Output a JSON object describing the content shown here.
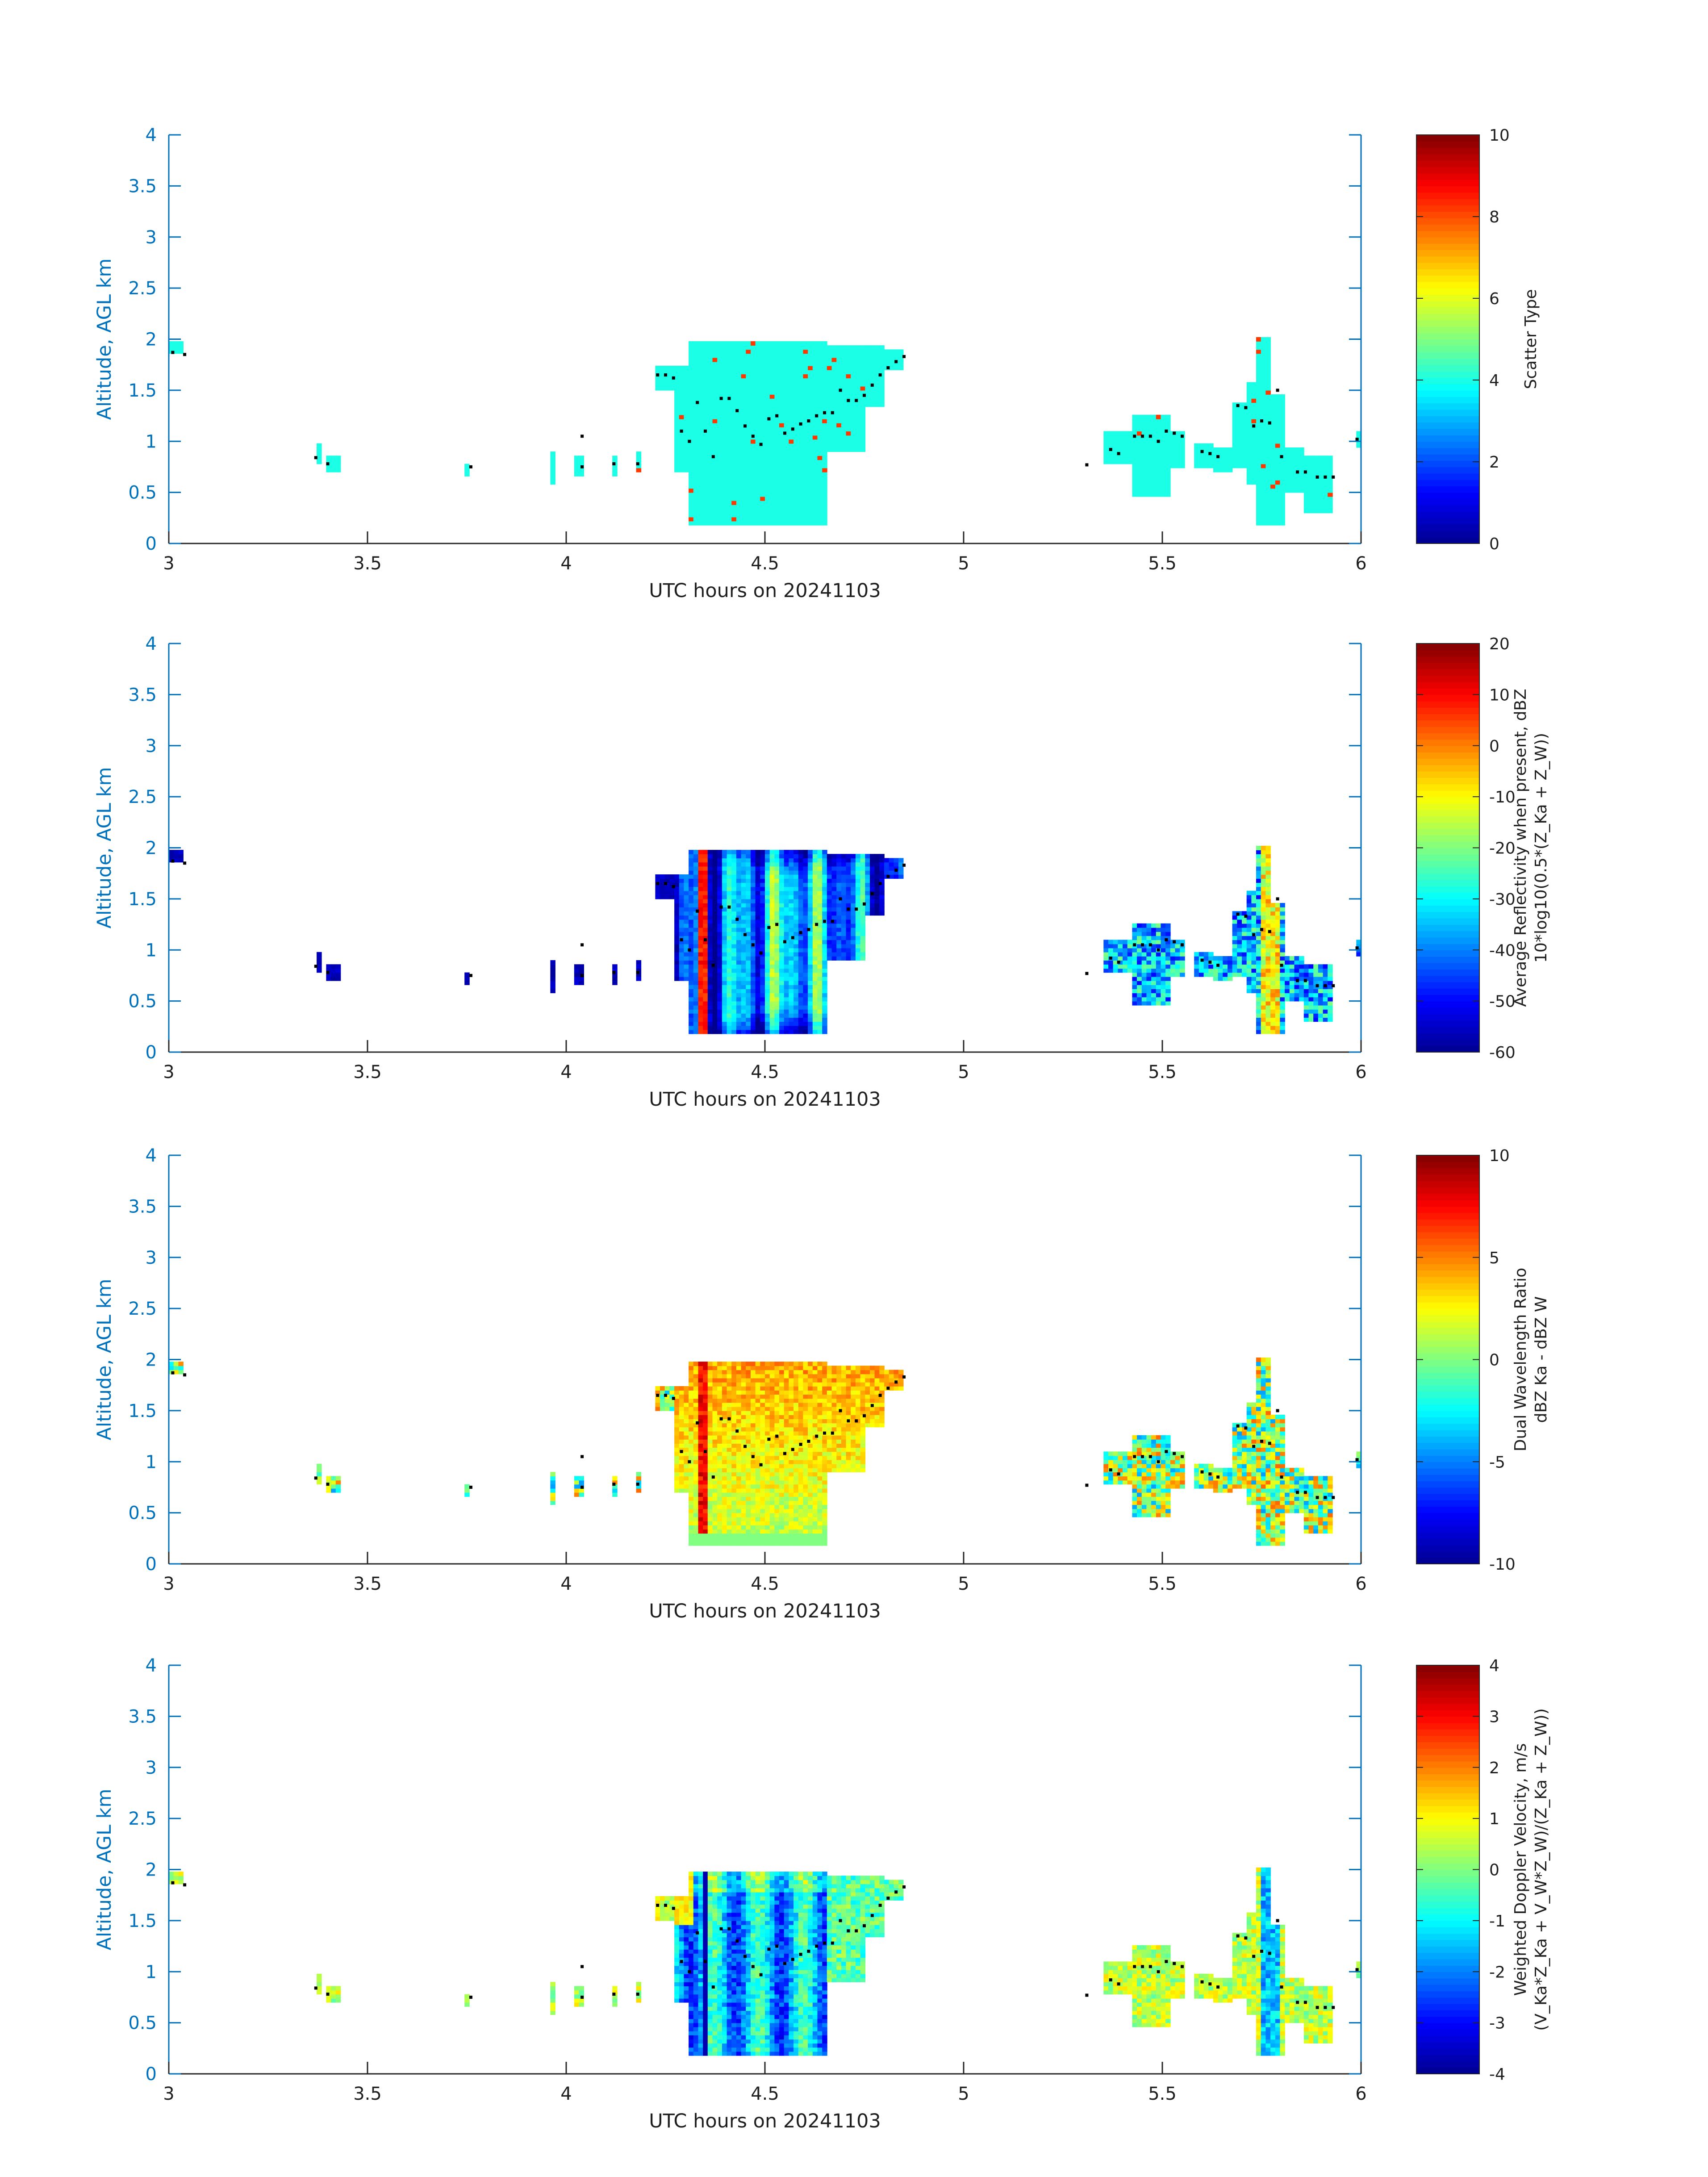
{
  "figure": {
    "colormap": "jet",
    "colormap_colors": [
      "#00008f",
      "#0000ff",
      "#00ffff",
      "#ffff00",
      "#ff0000",
      "#800000"
    ],
    "axis_color": "#0072bd",
    "marker_color": "#000000"
  },
  "chart_data": [
    {
      "type": "heatmap",
      "xlabel": "UTC hours on 20241103",
      "ylabel": "Altitude, AGL km",
      "xlim": [
        3,
        6
      ],
      "ylim": [
        0,
        4
      ],
      "xticks": [
        "3",
        "3.5",
        "4",
        "4.5",
        "5",
        "5.5",
        "6"
      ],
      "yticks": [
        "0",
        "0.5",
        "1",
        "1.5",
        "2",
        "2.5",
        "3",
        "3.5",
        "4"
      ],
      "colorbar": {
        "label_lines": [
          "Scatter Type"
        ],
        "clim": [
          0,
          10
        ],
        "ticks": [
          "0",
          "2",
          "4",
          "6",
          "8",
          "10"
        ]
      },
      "field": "scatter_type",
      "dominant_value": 4,
      "outlier_value": 8.2
    },
    {
      "type": "heatmap",
      "xlabel": "UTC hours on 20241103",
      "ylabel": "Altitude, AGL km",
      "xlim": [
        3,
        6
      ],
      "ylim": [
        0,
        4
      ],
      "xticks": [
        "3",
        "3.5",
        "4",
        "4.5",
        "5",
        "5.5",
        "6"
      ],
      "yticks": [
        "0",
        "0.5",
        "1",
        "1.5",
        "2",
        "2.5",
        "3",
        "3.5",
        "4"
      ],
      "colorbar": {
        "label_lines": [
          "Average Reflectivity when present, dBZ",
          "10*log10(0.5*(Z_Ka + Z_W))"
        ],
        "clim": [
          -60,
          20
        ],
        "ticks": [
          "-60",
          "-50",
          "-40",
          "-30",
          "-20",
          "-10",
          "0",
          "10",
          "20"
        ]
      },
      "field": "reflectivity"
    },
    {
      "type": "heatmap",
      "xlabel": "UTC hours on 20241103",
      "ylabel": "Altitude, AGL km",
      "xlim": [
        3,
        6
      ],
      "ylim": [
        0,
        4
      ],
      "xticks": [
        "3",
        "3.5",
        "4",
        "4.5",
        "5",
        "5.5",
        "6"
      ],
      "yticks": [
        "0",
        "0.5",
        "1",
        "1.5",
        "2",
        "2.5",
        "3",
        "3.5",
        "4"
      ],
      "colorbar": {
        "label_lines": [
          "Dual Wavelength Ratio",
          "dBZ Ka - dBZ W"
        ],
        "clim": [
          -10,
          10
        ],
        "ticks": [
          "-10",
          "-5",
          "0",
          "5",
          "10"
        ]
      },
      "field": "dwr"
    },
    {
      "type": "heatmap",
      "xlabel": "UTC hours on 20241103",
      "ylabel": "Altitude, AGL km",
      "xlim": [
        3,
        6
      ],
      "ylim": [
        0,
        4
      ],
      "xticks": [
        "3",
        "3.5",
        "4",
        "4.5",
        "5",
        "5.5",
        "6"
      ],
      "yticks": [
        "0",
        "0.5",
        "1",
        "1.5",
        "2",
        "2.5",
        "3",
        "3.5",
        "4"
      ],
      "colorbar": {
        "label_lines": [
          "Weighted Doppler Velocity, m/s",
          "(V_Ka*Z_Ka + V_W*Z_W)/(Z_Ka + Z_W))"
        ],
        "clim": [
          -4,
          4
        ],
        "ticks": [
          "-4",
          "-3",
          "-2",
          "-1",
          "0",
          "1",
          "2",
          "3",
          "4"
        ]
      },
      "field": "velocity"
    }
  ],
  "cloud_extent": [
    {
      "x": [
        3.0,
        3.04
      ],
      "ybot": 1.85,
      "ytop": 2.0
    },
    {
      "x": [
        3.37,
        3.39
      ],
      "ybot": 0.8,
      "ytop": 1.0
    },
    {
      "x": [
        3.4,
        3.43
      ],
      "ybot": 0.7,
      "ytop": 0.85
    },
    {
      "x": [
        3.75,
        3.76
      ],
      "ybot": 0.65,
      "ytop": 0.8
    },
    {
      "x": [
        3.86,
        3.87
      ],
      "ybot": 0.6,
      "ytop": 0.78
    },
    {
      "x": [
        3.96,
        3.97
      ],
      "ybot": 0.6,
      "ytop": 0.9
    },
    {
      "x": [
        4.02,
        4.05
      ],
      "ybot": 0.65,
      "ytop": 0.85
    },
    {
      "x": [
        4.04,
        4.05
      ],
      "ybot": 1.0,
      "ytop": 1.2
    },
    {
      "x": [
        4.12,
        4.13
      ],
      "ybot": 0.65,
      "ytop": 0.85
    },
    {
      "x": [
        4.18,
        4.19
      ],
      "ybot": 0.7,
      "ytop": 0.9
    },
    {
      "x": [
        4.22,
        4.27
      ],
      "ybot": 1.5,
      "ytop": 1.75
    },
    {
      "x": [
        4.27,
        4.31
      ],
      "ybot": 0.7,
      "ytop": 1.75
    },
    {
      "x": [
        4.31,
        4.66
      ],
      "ybot": 0.18,
      "ytop": 2.0
    },
    {
      "x": [
        4.66,
        4.75
      ],
      "ybot": 0.9,
      "ytop": 1.95
    },
    {
      "x": [
        4.75,
        4.8
      ],
      "ybot": 1.35,
      "ytop": 1.95
    },
    {
      "x": [
        4.8,
        4.85
      ],
      "ybot": 1.7,
      "ytop": 1.9
    },
    {
      "x": [
        5.31,
        5.32
      ],
      "ybot": 0.72,
      "ytop": 0.85
    },
    {
      "x": [
        5.35,
        5.42
      ],
      "ybot": 0.8,
      "ytop": 1.12
    },
    {
      "x": [
        5.42,
        5.52
      ],
      "ybot": 0.45,
      "ytop": 1.25
    },
    {
      "x": [
        5.52,
        5.56
      ],
      "ybot": 0.75,
      "ytop": 1.1
    },
    {
      "x": [
        5.58,
        5.63
      ],
      "ybot": 0.75,
      "ytop": 1.0
    },
    {
      "x": [
        5.63,
        5.68
      ],
      "ybot": 0.7,
      "ytop": 0.95
    },
    {
      "x": [
        5.68,
        5.71
      ],
      "ybot": 0.75,
      "ytop": 1.4
    },
    {
      "x": [
        5.71,
        5.74
      ],
      "ybot": 0.6,
      "ytop": 1.6
    },
    {
      "x": [
        5.74,
        5.77
      ],
      "ybot": 0.18,
      "ytop": 2.02
    },
    {
      "x": [
        5.77,
        5.81
      ],
      "ybot": 0.18,
      "ytop": 1.45
    },
    {
      "x": [
        5.81,
        5.86
      ],
      "ybot": 0.5,
      "ytop": 0.95
    },
    {
      "x": [
        5.86,
        5.93
      ],
      "ybot": 0.3,
      "ytop": 0.85
    },
    {
      "x": [
        5.99,
        6.0
      ],
      "ybot": 0.95,
      "ytop": 1.1
    }
  ],
  "markers": [
    [
      3.01,
      1.87
    ],
    [
      3.04,
      1.85
    ],
    [
      3.37,
      0.84
    ],
    [
      3.4,
      0.78
    ],
    [
      3.76,
      0.75
    ],
    [
      4.04,
      1.05
    ],
    [
      4.04,
      0.75
    ],
    [
      4.12,
      0.78
    ],
    [
      4.18,
      0.78
    ],
    [
      4.23,
      1.65
    ],
    [
      4.25,
      1.65
    ],
    [
      4.27,
      1.62
    ],
    [
      4.29,
      1.1
    ],
    [
      4.31,
      1.0
    ],
    [
      4.33,
      1.38
    ],
    [
      4.35,
      1.1
    ],
    [
      4.37,
      0.85
    ],
    [
      4.39,
      1.42
    ],
    [
      4.41,
      1.42
    ],
    [
      4.43,
      1.3
    ],
    [
      4.45,
      1.15
    ],
    [
      4.47,
      1.05
    ],
    [
      4.49,
      0.97
    ],
    [
      4.51,
      1.22
    ],
    [
      4.53,
      1.25
    ],
    [
      4.55,
      1.08
    ],
    [
      4.57,
      1.12
    ],
    [
      4.59,
      1.17
    ],
    [
      4.61,
      1.2
    ],
    [
      4.63,
      1.25
    ],
    [
      4.65,
      1.28
    ],
    [
      4.67,
      1.28
    ],
    [
      4.69,
      1.5
    ],
    [
      4.71,
      1.4
    ],
    [
      4.73,
      1.4
    ],
    [
      4.75,
      1.45
    ],
    [
      4.77,
      1.55
    ],
    [
      4.79,
      1.65
    ],
    [
      4.81,
      1.72
    ],
    [
      4.83,
      1.78
    ],
    [
      4.85,
      1.83
    ],
    [
      5.31,
      0.77
    ],
    [
      5.37,
      0.92
    ],
    [
      5.39,
      0.88
    ],
    [
      5.43,
      1.05
    ],
    [
      5.45,
      1.05
    ],
    [
      5.47,
      1.05
    ],
    [
      5.49,
      1.0
    ],
    [
      5.51,
      1.1
    ],
    [
      5.53,
      1.08
    ],
    [
      5.55,
      1.05
    ],
    [
      5.6,
      0.9
    ],
    [
      5.62,
      0.88
    ],
    [
      5.64,
      0.85
    ],
    [
      5.69,
      1.35
    ],
    [
      5.71,
      1.33
    ],
    [
      5.73,
      1.15
    ],
    [
      5.75,
      1.2
    ],
    [
      5.77,
      1.18
    ],
    [
      5.79,
      1.5
    ],
    [
      5.8,
      0.85
    ],
    [
      5.84,
      0.7
    ],
    [
      5.86,
      0.7
    ],
    [
      5.89,
      0.65
    ],
    [
      5.91,
      0.65
    ],
    [
      5.93,
      0.65
    ],
    [
      5.99,
      1.02
    ]
  ]
}
